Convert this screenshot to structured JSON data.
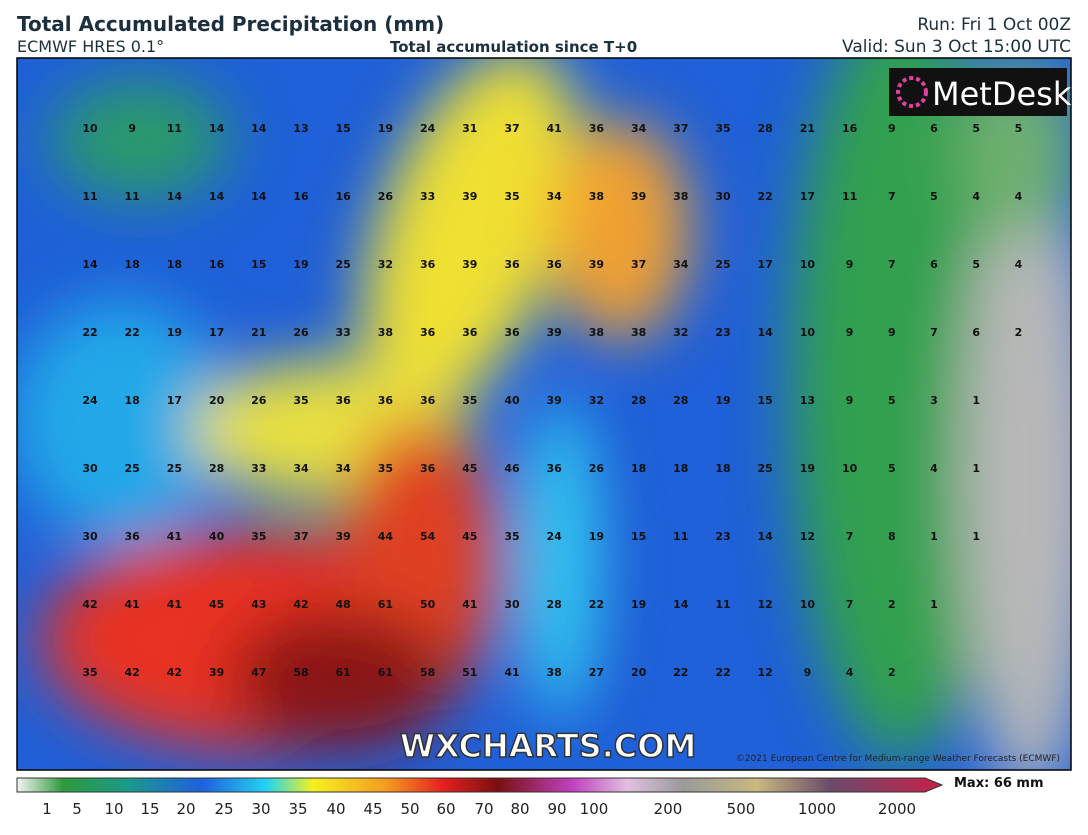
{
  "header": {
    "title": "Total Accumulated Precipitation (mm)",
    "model": "ECMWF HRES 0.1°",
    "subtitle": "Total accumulation since T+0",
    "run": "Run: Fri 1 Oct 00Z",
    "valid": "Valid: Sun 3 Oct 15:00 UTC"
  },
  "logo": "MetDesk",
  "watermark": "WXCHARTS.COM",
  "copyright": "©2021 European Centre for Medium-range Weather Forecasts (ECMWF)",
  "grid_values": [
    [
      10,
      9,
      11,
      14,
      14,
      13,
      15,
      19,
      24,
      31,
      37,
      41,
      36,
      34,
      37,
      35,
      28,
      21,
      16,
      9,
      6,
      5,
      5
    ],
    [
      11,
      11,
      14,
      14,
      14,
      16,
      16,
      26,
      33,
      39,
      35,
      34,
      38,
      39,
      38,
      30,
      22,
      17,
      11,
      7,
      5,
      4,
      4
    ],
    [
      14,
      18,
      18,
      16,
      15,
      19,
      25,
      32,
      36,
      39,
      36,
      36,
      39,
      37,
      34,
      25,
      17,
      10,
      9,
      7,
      6,
      5,
      4
    ],
    [
      22,
      22,
      19,
      17,
      21,
      26,
      33,
      38,
      36,
      36,
      36,
      39,
      38,
      38,
      32,
      23,
      14,
      10,
      9,
      9,
      7,
      6,
      2
    ],
    [
      24,
      18,
      17,
      20,
      26,
      35,
      36,
      36,
      36,
      35,
      40,
      39,
      32,
      28,
      28,
      19,
      15,
      13,
      9,
      5,
      3,
      1
    ],
    [
      30,
      25,
      25,
      28,
      33,
      34,
      34,
      35,
      36,
      45,
      46,
      36,
      26,
      18,
      18,
      18,
      25,
      19,
      10,
      5,
      4,
      1
    ],
    [
      30,
      36,
      41,
      40,
      35,
      37,
      39,
      44,
      54,
      45,
      35,
      24,
      19,
      15,
      11,
      23,
      14,
      12,
      7,
      8,
      1,
      1
    ],
    [
      42,
      41,
      41,
      45,
      43,
      42,
      48,
      61,
      50,
      41,
      30,
      28,
      22,
      19,
      14,
      11,
      12,
      10,
      7,
      2,
      1
    ],
    [
      35,
      42,
      42,
      39,
      47,
      58,
      61,
      61,
      58,
      51,
      41,
      38,
      27,
      20,
      22,
      22,
      12,
      9,
      4,
      2
    ]
  ],
  "colorbar": {
    "ticks": [
      1,
      5,
      10,
      15,
      20,
      25,
      30,
      35,
      40,
      45,
      50,
      60,
      70,
      80,
      90,
      100,
      200,
      500,
      1000,
      2000
    ],
    "max_label": "Max: 66 mm"
  }
}
